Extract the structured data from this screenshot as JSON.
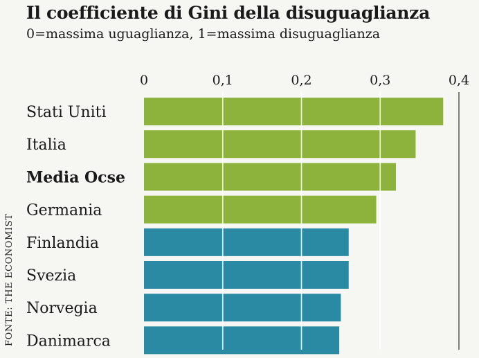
{
  "chart_data": {
    "type": "bar",
    "orientation": "horizontal",
    "title": "Il coefficiente di Gini della disuguaglianza",
    "subtitle": "0=massima uguaglianza, 1=massima disuguaglianza",
    "source": "FONTE: THE ECONOMIST",
    "categories": [
      "Stati Uniti",
      "Italia",
      "Media Ocse",
      "Germania",
      "Finlandia",
      "Svezia",
      "Norvegia",
      "Danimarca"
    ],
    "values": [
      0.38,
      0.345,
      0.32,
      0.295,
      0.26,
      0.26,
      0.25,
      0.248
    ],
    "bar_colors": [
      "#8db33c",
      "#8db33c",
      "#8db33c",
      "#8db33c",
      "#2a8aa3",
      "#2a8aa3",
      "#2a8aa3",
      "#2a8aa3"
    ],
    "bold_categories": [
      "Media Ocse"
    ],
    "xlim": [
      0,
      0.4
    ],
    "ticks": [
      0,
      0.1,
      0.2,
      0.3,
      0.4
    ],
    "tick_labels": [
      "0",
      "0,1",
      "0,2",
      "0,3",
      "0,4"
    ],
    "xlabel": "",
    "ylabel": "",
    "gridlines": true,
    "tick_position": "top"
  }
}
